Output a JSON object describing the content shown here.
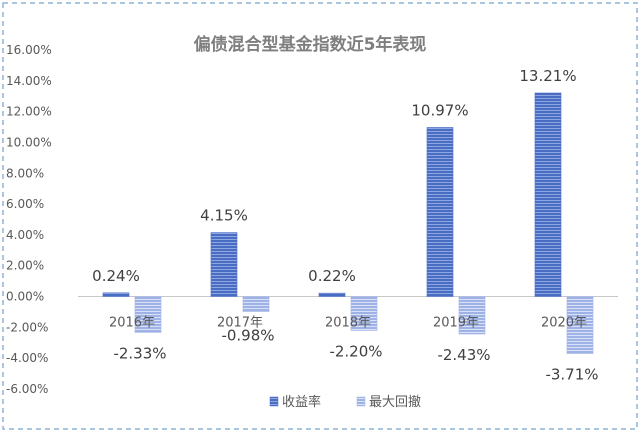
{
  "chart_data": {
    "type": "bar",
    "title": "偏债混合型基金指数近5年表现",
    "categories": [
      "2016年",
      "2017年",
      "2018年",
      "2019年",
      "2020年"
    ],
    "series": [
      {
        "name": "收益率",
        "values": [
          0.24,
          4.15,
          0.22,
          10.97,
          13.21
        ],
        "labels": [
          "0.24%",
          "4.15%",
          "0.22%",
          "10.97%",
          "13.21%"
        ],
        "color": "#4a6dc4",
        "stripe_color": "#8ea6e2"
      },
      {
        "name": "最大回撤",
        "values": [
          -2.33,
          -0.98,
          -2.2,
          -2.43,
          -3.71
        ],
        "labels": [
          "-2.33%",
          "-0.98%",
          "-2.20%",
          "-2.43%",
          "-3.71%"
        ],
        "color": "#9fb2e6",
        "stripe_color": "#d9e1f7"
      }
    ],
    "ylim": [
      -6,
      16
    ],
    "yticks": [
      -6,
      -4,
      -2,
      0,
      2,
      4,
      6,
      8,
      10,
      12,
      14,
      16
    ],
    "ytick_labels": [
      "-6.00%",
      "-4.00%",
      "-2.00%",
      "0.00%",
      "2.00%",
      "4.00%",
      "6.00%",
      "8.00%",
      "10.00%",
      "12.00%",
      "14.00%",
      "16.00%"
    ],
    "grid": false,
    "legend_position": "bottom",
    "frame_style": "dashed",
    "frame_color": "#8fb3d9",
    "axis_color": "#c8c8c8",
    "title_color": "#7f7f7f",
    "text_color": "#595959"
  }
}
